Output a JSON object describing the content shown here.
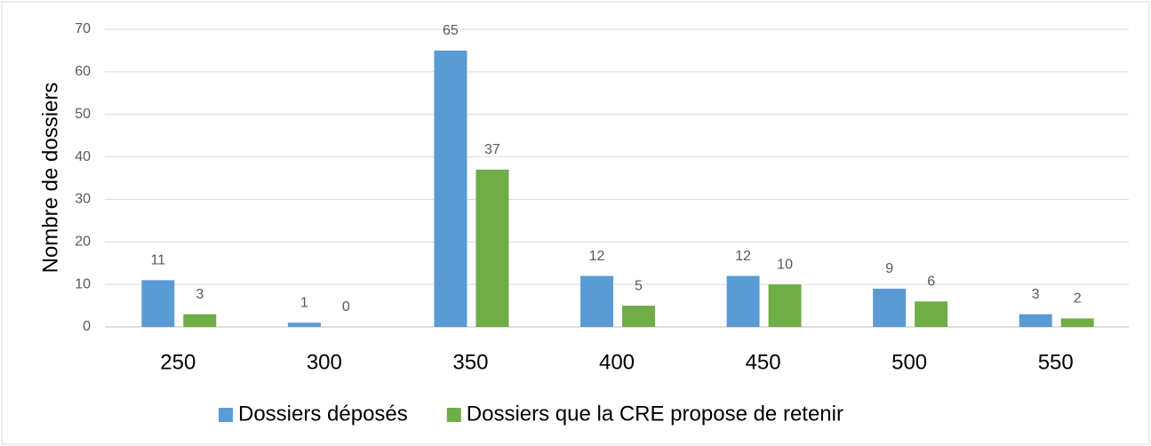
{
  "chart_data": {
    "type": "bar",
    "y_label": "Nombre de dossiers",
    "categories": [
      "250",
      "300",
      "350",
      "400",
      "450",
      "500",
      "550"
    ],
    "series": [
      {
        "name": "Dossiers déposés",
        "color": "#5b9bd5",
        "values": [
          11,
          1,
          65,
          12,
          12,
          9,
          3
        ]
      },
      {
        "name": "Dossiers que la CRE propose de retenir",
        "color": "#70ad47",
        "values": [
          3,
          0,
          37,
          5,
          10,
          6,
          2
        ]
      }
    ],
    "ylim": [
      0,
      70
    ],
    "yticks": [
      0,
      10,
      20,
      30,
      40,
      50,
      60,
      70
    ],
    "grid": true,
    "legend": "bottom"
  }
}
